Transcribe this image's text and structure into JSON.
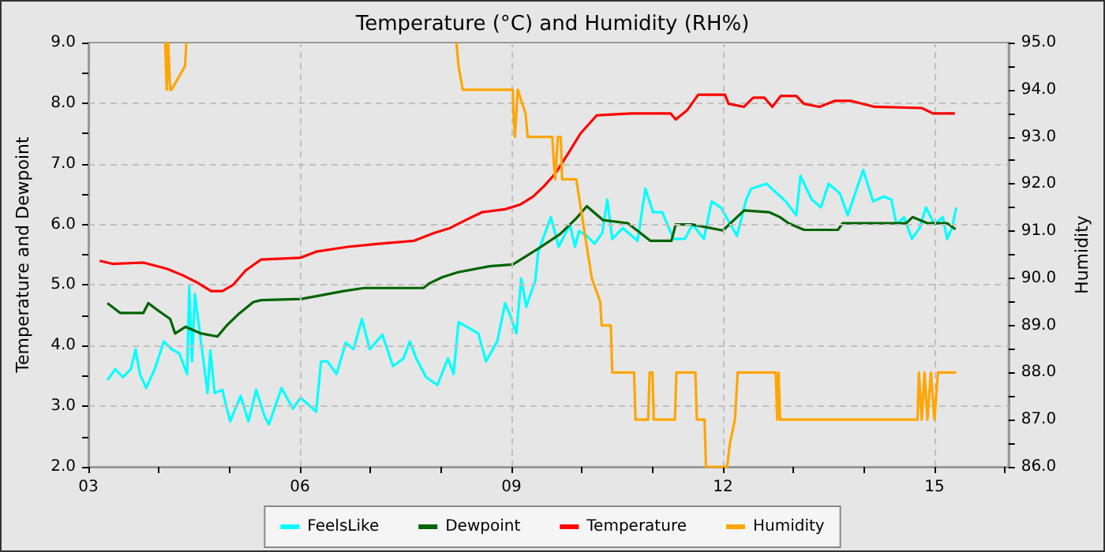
{
  "chart_data": {
    "type": "line",
    "title": "Temperature (°C) and Humidity (RH%)",
    "ylabel": "Temperature and Dewpoint",
    "y2label": "Humidity",
    "xlim": [
      3,
      16.05
    ],
    "xticks": [
      {
        "value": 3,
        "label": "03"
      },
      {
        "value": 4,
        "label": null
      },
      {
        "value": 5,
        "label": null
      },
      {
        "value": 6,
        "label": "06"
      },
      {
        "value": 7,
        "label": null
      },
      {
        "value": 8,
        "label": null
      },
      {
        "value": 9,
        "label": "09"
      },
      {
        "value": 10,
        "label": null
      },
      {
        "value": 11,
        "label": null
      },
      {
        "value": 12,
        "label": "12"
      },
      {
        "value": 13,
        "label": null
      },
      {
        "value": 14,
        "label": null
      },
      {
        "value": 15,
        "label": "15"
      },
      {
        "value": 16,
        "label": null
      }
    ],
    "ylim": [
      2,
      9
    ],
    "yticks": [
      {
        "value": 2,
        "label": "2.0"
      },
      {
        "value": 2.5,
        "label": null
      },
      {
        "value": 3,
        "label": "3.0"
      },
      {
        "value": 3.5,
        "label": null
      },
      {
        "value": 4,
        "label": "4.0"
      },
      {
        "value": 4.5,
        "label": null
      },
      {
        "value": 5,
        "label": "5.0"
      },
      {
        "value": 5.5,
        "label": null
      },
      {
        "value": 6,
        "label": "6.0"
      },
      {
        "value": 6.5,
        "label": null
      },
      {
        "value": 7,
        "label": "7.0"
      },
      {
        "value": 7.5,
        "label": null
      },
      {
        "value": 8,
        "label": "8.0"
      },
      {
        "value": 8.5,
        "label": null
      },
      {
        "value": 9,
        "label": "9.0"
      }
    ],
    "y2lim": [
      86,
      95
    ],
    "y2ticks": [
      {
        "value": 86,
        "label": "86.0"
      },
      {
        "value": 86.5,
        "label": null
      },
      {
        "value": 87,
        "label": "87.0"
      },
      {
        "value": 87.5,
        "label": null
      },
      {
        "value": 88,
        "label": "88.0"
      },
      {
        "value": 88.5,
        "label": null
      },
      {
        "value": 89,
        "label": "89.0"
      },
      {
        "value": 89.5,
        "label": null
      },
      {
        "value": 90,
        "label": "90.0"
      },
      {
        "value": 90.5,
        "label": null
      },
      {
        "value": 91,
        "label": "91.0"
      },
      {
        "value": 91.5,
        "label": null
      },
      {
        "value": 92,
        "label": "92.0"
      },
      {
        "value": 92.5,
        "label": null
      },
      {
        "value": 93,
        "label": "93.0"
      },
      {
        "value": 93.5,
        "label": null
      },
      {
        "value": 94,
        "label": "94.0"
      },
      {
        "value": 94.5,
        "label": null
      },
      {
        "value": 95,
        "label": "95.0"
      }
    ],
    "grid": true,
    "legend": "bottom",
    "marker": "none",
    "series": [
      {
        "name": "FeelsLike",
        "color": "#00ffff",
        "x": [
          3.27,
          3.38,
          3.49,
          3.6,
          3.67,
          3.73,
          3.82,
          3.94,
          4.07,
          4.18,
          4.29,
          4.4,
          4.43,
          4.47,
          4.51,
          4.69,
          4.73,
          4.79,
          4.9,
          5.01,
          5.16,
          5.27,
          5.38,
          5.5,
          5.56,
          5.74,
          5.9,
          6.01,
          6.23,
          6.3,
          6.39,
          6.52,
          6.65,
          6.76,
          6.88,
          6.99,
          7.17,
          7.32,
          7.47,
          7.56,
          7.65,
          7.79,
          7.95,
          8.1,
          8.18,
          8.25,
          8.53,
          8.64,
          8.8,
          8.91,
          8.98,
          9.07,
          9.14,
          9.21,
          9.34,
          9.38,
          9.56,
          9.67,
          9.83,
          9.9,
          9.96,
          10.07,
          10.18,
          10.29,
          10.36,
          10.43,
          10.58,
          10.79,
          10.9,
          11.01,
          11.14,
          11.3,
          11.46,
          11.57,
          11.73,
          11.84,
          11.97,
          12.2,
          12.33,
          12.4,
          12.62,
          12.89,
          13.04,
          13.1,
          13.26,
          13.39,
          13.5,
          13.66,
          13.77,
          13.99,
          14.13,
          14.28,
          14.39,
          14.46,
          14.57,
          14.68,
          14.79,
          14.88,
          15.0,
          15.12,
          15.18,
          15.25,
          15.31
        ],
        "values": [
          3.43,
          3.61,
          3.48,
          3.61,
          3.94,
          3.53,
          3.3,
          3.61,
          4.07,
          3.94,
          3.87,
          3.53,
          4.98,
          3.74,
          4.85,
          3.22,
          3.92,
          3.22,
          3.27,
          2.75,
          3.17,
          2.75,
          3.27,
          2.83,
          2.7,
          3.3,
          2.96,
          3.14,
          2.91,
          3.74,
          3.74,
          3.53,
          4.05,
          3.94,
          4.44,
          3.94,
          4.18,
          3.66,
          3.79,
          4.07,
          3.79,
          3.48,
          3.35,
          3.79,
          3.53,
          4.39,
          4.2,
          3.74,
          4.07,
          4.7,
          4.51,
          4.2,
          5.11,
          4.64,
          5.08,
          5.55,
          6.12,
          5.63,
          6.0,
          5.63,
          5.89,
          5.81,
          5.68,
          5.86,
          6.41,
          5.76,
          5.94,
          5.73,
          6.59,
          6.2,
          6.2,
          5.76,
          5.76,
          6.0,
          5.76,
          6.38,
          6.28,
          5.81,
          6.41,
          6.59,
          6.67,
          6.38,
          6.15,
          6.8,
          6.41,
          6.28,
          6.67,
          6.51,
          6.15,
          6.9,
          6.38,
          6.46,
          6.41,
          6.0,
          6.12,
          5.76,
          5.94,
          6.28,
          6.0,
          6.12,
          5.76,
          5.94,
          6.28
        ]
      },
      {
        "name": "Dewpoint",
        "color": "#006400",
        "x": [
          3.27,
          3.45,
          3.78,
          3.85,
          4.0,
          4.16,
          4.23,
          4.38,
          4.6,
          4.83,
          4.96,
          5.12,
          5.34,
          5.45,
          6.02,
          6.62,
          6.91,
          7.75,
          7.84,
          8.02,
          8.24,
          8.69,
          9.02,
          9.2,
          9.42,
          9.69,
          9.92,
          10.07,
          10.3,
          10.65,
          10.97,
          11.27,
          11.33,
          11.56,
          12.0,
          12.3,
          12.66,
          12.81,
          12.93,
          13.15,
          13.63,
          13.7,
          14.6,
          14.69,
          14.9,
          15.18,
          15.3
        ],
        "values": [
          4.7,
          4.54,
          4.54,
          4.7,
          4.57,
          4.44,
          4.2,
          4.31,
          4.2,
          4.15,
          4.33,
          4.51,
          4.72,
          4.75,
          4.77,
          4.9,
          4.95,
          4.95,
          5.03,
          5.13,
          5.21,
          5.31,
          5.34,
          5.47,
          5.63,
          5.84,
          6.1,
          6.3,
          6.07,
          6.02,
          5.73,
          5.73,
          6.0,
          6.0,
          5.9,
          6.23,
          6.2,
          6.12,
          6.02,
          5.91,
          5.91,
          6.02,
          6.02,
          6.12,
          6.02,
          6.02,
          5.92
        ]
      },
      {
        "name": "Temperature",
        "color": "#ff0000",
        "x": [
          3.16,
          3.34,
          3.78,
          4.11,
          4.34,
          4.56,
          4.74,
          4.9,
          5.05,
          5.23,
          5.45,
          6.01,
          6.23,
          6.68,
          7.12,
          7.62,
          7.91,
          8.13,
          8.35,
          8.58,
          8.91,
          9.13,
          9.31,
          9.47,
          9.63,
          9.8,
          9.98,
          10.21,
          10.7,
          11.26,
          11.33,
          11.49,
          11.65,
          12.03,
          12.08,
          12.3,
          12.43,
          12.59,
          12.7,
          12.82,
          13.04,
          13.15,
          13.37,
          13.59,
          13.81,
          14.15,
          14.82,
          14.98,
          15.29
        ],
        "values": [
          5.4,
          5.35,
          5.37,
          5.27,
          5.16,
          5.03,
          4.9,
          4.9,
          5.0,
          5.24,
          5.42,
          5.45,
          5.55,
          5.63,
          5.68,
          5.73,
          5.86,
          5.94,
          6.07,
          6.2,
          6.25,
          6.33,
          6.46,
          6.64,
          6.85,
          7.16,
          7.5,
          7.8,
          7.83,
          7.83,
          7.73,
          7.88,
          8.14,
          8.14,
          7.99,
          7.94,
          8.09,
          8.09,
          7.94,
          8.12,
          8.12,
          7.99,
          7.94,
          8.04,
          8.04,
          7.94,
          7.92,
          7.83,
          7.83
        ]
      },
      {
        "name": "Humidity",
        "color": "#ffa500",
        "axis": "y2",
        "x": [
          4.09,
          4.11,
          4.13,
          4.16,
          4.18,
          4.37,
          4.39,
          6.3,
          8.22,
          8.25,
          8.31,
          9.02,
          9.03,
          9.05,
          9.09,
          9.2,
          9.23,
          9.58,
          9.6,
          9.62,
          9.66,
          9.7,
          9.72,
          9.92,
          10.14,
          10.26,
          10.28,
          10.41,
          10.43,
          10.74,
          10.76,
          10.94,
          10.96,
          11.0,
          11.02,
          11.32,
          11.34,
          11.61,
          11.63,
          11.74,
          11.76,
          12.06,
          12.1,
          12.17,
          12.21,
          12.75,
          12.77,
          12.79,
          12.81,
          12.86,
          14.76,
          14.78,
          14.82,
          14.86,
          14.9,
          14.95,
          15.0,
          15.05,
          15.31
        ],
        "values": [
          95,
          94.0,
          95,
          94.0,
          94.0,
          94.5,
          95,
          null,
          95,
          94.5,
          94.0,
          94.0,
          93.5,
          93.0,
          94.0,
          93.5,
          93.0,
          93.0,
          92.5,
          92.1,
          93.0,
          93.0,
          92.1,
          92.1,
          90.0,
          89.5,
          89.0,
          89.0,
          88.0,
          88.0,
          87.0,
          87.0,
          88.0,
          88.0,
          87.0,
          87.0,
          88.0,
          88.0,
          87.0,
          87.0,
          86.0,
          86.0,
          86.5,
          87.0,
          88.0,
          88.0,
          87.0,
          88.0,
          87.0,
          87.0,
          87.0,
          88.0,
          87.0,
          88.0,
          87.0,
          88.0,
          87.0,
          88.0,
          88.0
        ]
      }
    ]
  }
}
